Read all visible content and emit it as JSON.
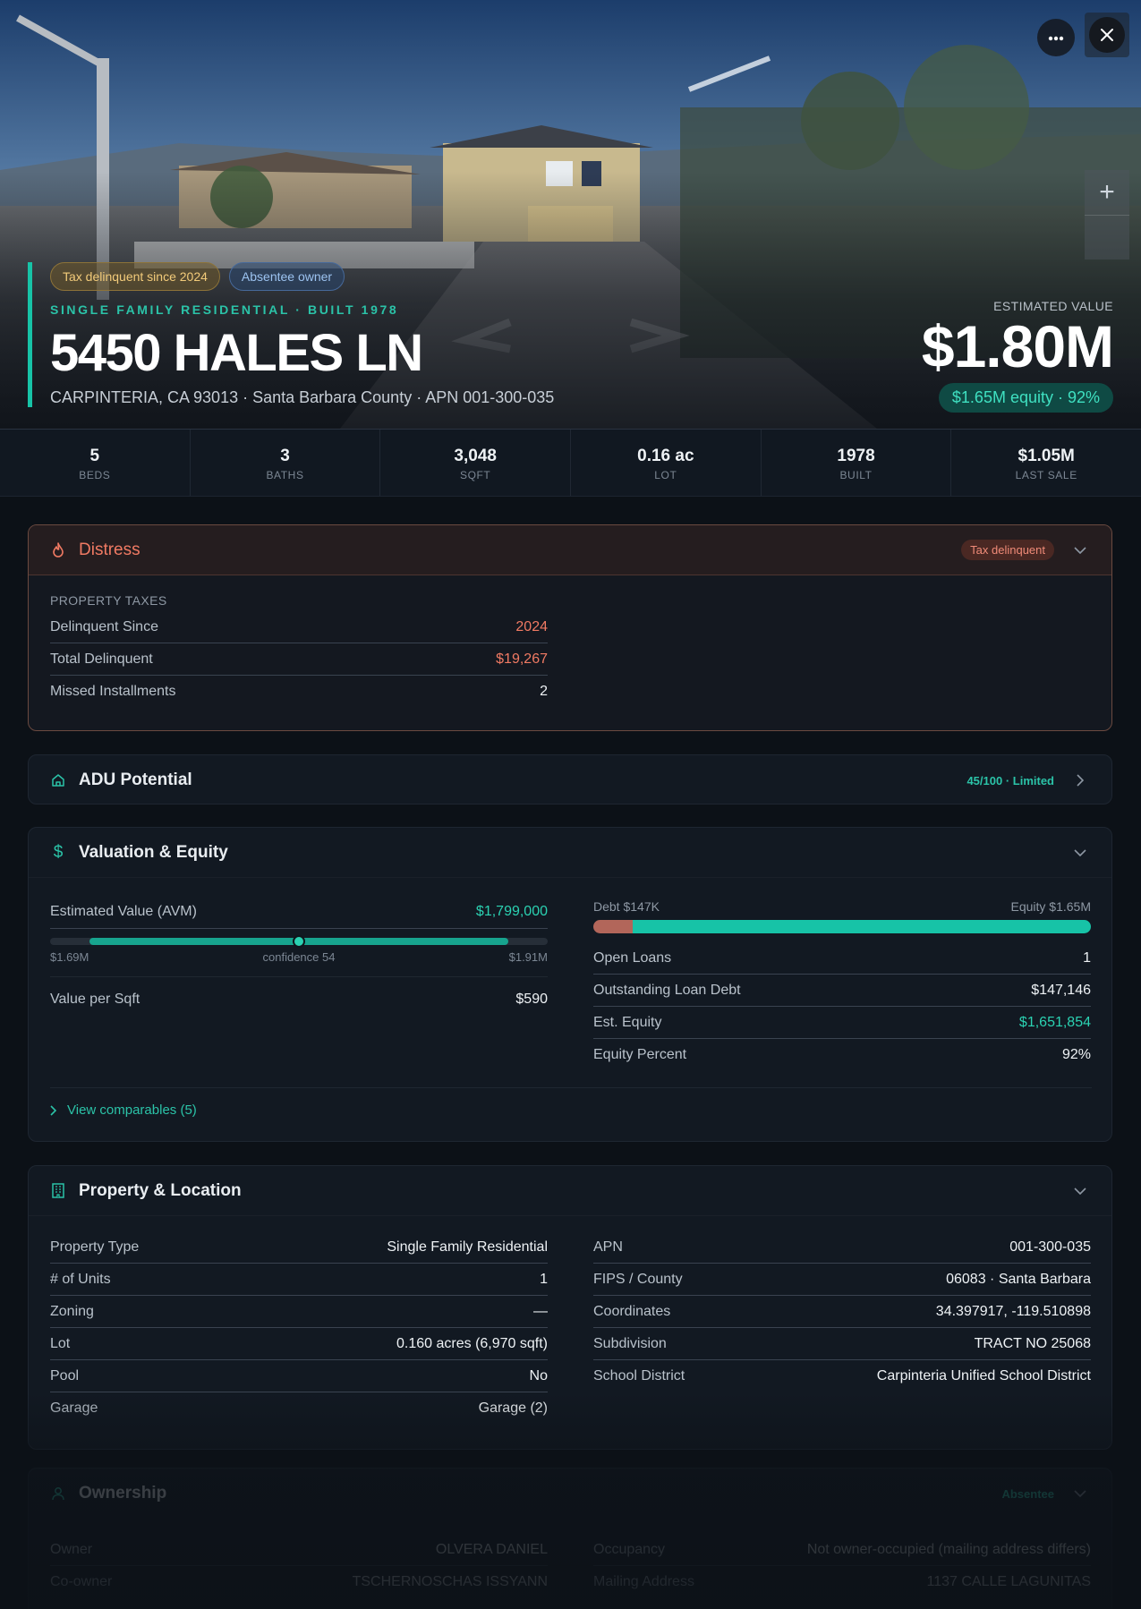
{
  "hero": {
    "badges": {
      "tax": "Tax delinquent since 2024",
      "absentee": "Absentee owner"
    },
    "kicker": "SINGLE FAMILY RESIDENTIAL · BUILT 1978",
    "address": "5450 HALES LN",
    "subline": "CARPINTERIA, CA 93013 · Santa Barbara County · APN 001-300-035",
    "value_label": "ESTIMATED VALUE",
    "value": "$1.80M",
    "equity_pill": "$1.65M equity · 92%",
    "zoom_in": "+"
  },
  "stats": [
    {
      "value": "5",
      "label": "BEDS"
    },
    {
      "value": "3",
      "label": "BATHS"
    },
    {
      "value": "3,048",
      "label": "SQFT"
    },
    {
      "value": "0.16 ac",
      "label": "LOT"
    },
    {
      "value": "1978",
      "label": "BUILT"
    },
    {
      "value": "$1.05M",
      "label": "LAST SALE"
    }
  ],
  "distress": {
    "title": "Distress",
    "tag": "Tax delinquent",
    "section": "PROPERTY TAXES",
    "rows": [
      {
        "k": "Delinquent Since",
        "v": "2024"
      },
      {
        "k": "Total Delinquent",
        "v": "$19,267"
      },
      {
        "k": "Missed Installments",
        "v": "2"
      }
    ]
  },
  "adu": {
    "title": "ADU Potential",
    "tag": "45/100 · Limited"
  },
  "valuation": {
    "title": "Valuation & Equity",
    "avm_label": "Estimated Value (AVM)",
    "avm_value": "$1,799,000",
    "range_low": "$1.69M",
    "range_mid": "confidence 54",
    "range_high": "$1.91M",
    "range_fill_start": 0.08,
    "range_fill_end": 0.92,
    "range_point": 0.5,
    "vps_label": "Value per Sqft",
    "vps_value": "$590",
    "debt_label": "Debt $147K",
    "equity_label": "Equity $1.65M",
    "debt_fraction": 0.08,
    "rows": [
      {
        "k": "Open Loans",
        "v": "1"
      },
      {
        "k": "Outstanding Loan Debt",
        "v": "$147,146"
      },
      {
        "k": "Est. Equity",
        "v": "$1,651,854"
      },
      {
        "k": "Equity Percent",
        "v": "92%"
      }
    ],
    "comps": "View comparables (5)"
  },
  "property": {
    "title": "Property & Location",
    "left": [
      {
        "k": "Property Type",
        "v": "Single Family Residential"
      },
      {
        "k": "# of Units",
        "v": "1"
      },
      {
        "k": "Zoning",
        "v": "—"
      },
      {
        "k": "Lot",
        "v": "0.160 acres (6,970 sqft)"
      },
      {
        "k": "Pool",
        "v": "No"
      },
      {
        "k": "Garage",
        "v": "Garage (2)"
      }
    ],
    "right": [
      {
        "k": "APN",
        "v": "001-300-035"
      },
      {
        "k": "FIPS / County",
        "v": "06083 · Santa Barbara"
      },
      {
        "k": "Coordinates",
        "v": "34.397917, -119.510898"
      },
      {
        "k": "Subdivision",
        "v": "TRACT NO 25068"
      },
      {
        "k": "School District",
        "v": "Carpinteria Unified School District"
      }
    ]
  },
  "ownership": {
    "title": "Ownership",
    "tag": "Absentee",
    "left": [
      {
        "k": "Owner",
        "v": "OLVERA DANIEL"
      },
      {
        "k": "Co-owner",
        "v": "TSCHERNOSCHAS ISSYANN"
      }
    ],
    "right": [
      {
        "k": "Occupancy",
        "v": "Not owner-occupied (mailing address differs)"
      },
      {
        "k": "Mailing Address",
        "v": "1137 CALLE LAGUNITAS"
      }
    ]
  },
  "colors": {
    "accent": "#17c3a7",
    "danger": "#f07a63",
    "background": "#0c1117"
  }
}
